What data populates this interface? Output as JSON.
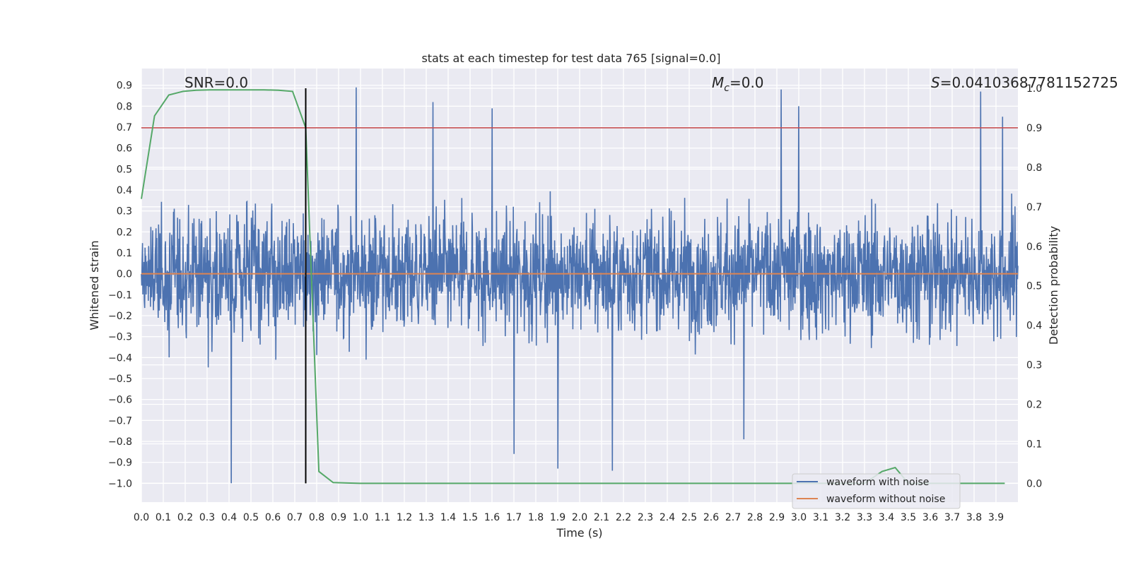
{
  "chart_data": {
    "type": "line",
    "title": "stats at each timestep for test data 765 [signal=0.0]",
    "xlabel": "Time (s)",
    "ylabel": "Whitened strain",
    "y2label": "Detection probability",
    "xlim": [
      0.0,
      4.0
    ],
    "ylim": [
      -1.09,
      0.98
    ],
    "y2lim": [
      -0.0475,
      1.05
    ],
    "grid": true,
    "legend_position": "lower right",
    "x_ticks": [
      "0.0",
      "0.1",
      "0.2",
      "0.3",
      "0.4",
      "0.5",
      "0.6",
      "0.7",
      "0.8",
      "0.9",
      "1.0",
      "1.1",
      "1.2",
      "1.3",
      "1.4",
      "1.5",
      "1.6",
      "1.7",
      "1.8",
      "1.9",
      "2.0",
      "2.1",
      "2.2",
      "2.3",
      "2.4",
      "2.5",
      "2.6",
      "2.7",
      "2.8",
      "2.9",
      "3.0",
      "3.1",
      "3.2",
      "3.3",
      "3.4",
      "3.5",
      "3.6",
      "3.7",
      "3.8",
      "3.9"
    ],
    "y_ticks": [
      "0.9",
      "0.8",
      "0.7",
      "0.6",
      "0.5",
      "0.4",
      "0.3",
      "0.2",
      "0.1",
      "0.0",
      "−0.1",
      "−0.2",
      "−0.3",
      "−0.4",
      "−0.5",
      "−0.6",
      "−0.7",
      "−0.8",
      "−0.9",
      "−1.0"
    ],
    "y2_ticks": [
      "1.0",
      "0.9",
      "0.8",
      "0.7",
      "0.6",
      "0.5",
      "0.4",
      "0.3",
      "0.2",
      "0.1",
      "0.0"
    ],
    "annotations": {
      "snr": "SNR=0.0",
      "mc_symbol": "M",
      "mc_subscript": "c",
      "mc_value": "=0.0",
      "s_symbol": "S",
      "s_value": "=0.04103687781152725"
    },
    "threshold": {
      "y2": 0.9,
      "color": "#c44e52"
    },
    "marker_line": {
      "x": 0.75,
      "color": "#000000"
    },
    "series": [
      {
        "name": "waveform with noise",
        "axis": "left",
        "color": "#4c72b0",
        "peaks": [
          [
            0.41,
            -1.0
          ],
          [
            0.98,
            0.89
          ],
          [
            1.33,
            0.82
          ],
          [
            1.6,
            0.79
          ],
          [
            1.9,
            -0.93
          ],
          [
            2.15,
            -0.94
          ],
          [
            2.92,
            0.88
          ],
          [
            3.0,
            0.8
          ],
          [
            3.83,
            0.87
          ],
          [
            3.93,
            0.75
          ],
          [
            1.7,
            -0.86
          ],
          [
            2.75,
            -0.79
          ]
        ]
      },
      {
        "name": "waveform without noise",
        "axis": "left",
        "color": "#dd8452",
        "x": [
          0.0,
          4.0
        ],
        "values": [
          0.0,
          0.0
        ]
      },
      {
        "axis": "right",
        "color": "#55a868",
        "x": [
          0.0,
          0.06,
          0.125,
          0.19,
          0.25,
          0.31,
          0.375,
          0.44,
          0.5,
          0.56,
          0.625,
          0.69,
          0.75,
          0.81,
          0.875,
          0.94,
          1.0,
          1.5,
          2.0,
          2.5,
          3.0,
          3.3,
          3.38,
          3.44,
          3.5,
          3.94
        ],
        "values": [
          0.72,
          0.93,
          0.983,
          0.992,
          0.995,
          0.996,
          0.996,
          0.996,
          0.996,
          0.996,
          0.995,
          0.992,
          0.9,
          0.03,
          0.002,
          0.001,
          0.0,
          0.0,
          0.0,
          0.0,
          0.0,
          0.0,
          0.03,
          0.04,
          0.0,
          0.0
        ]
      }
    ]
  }
}
